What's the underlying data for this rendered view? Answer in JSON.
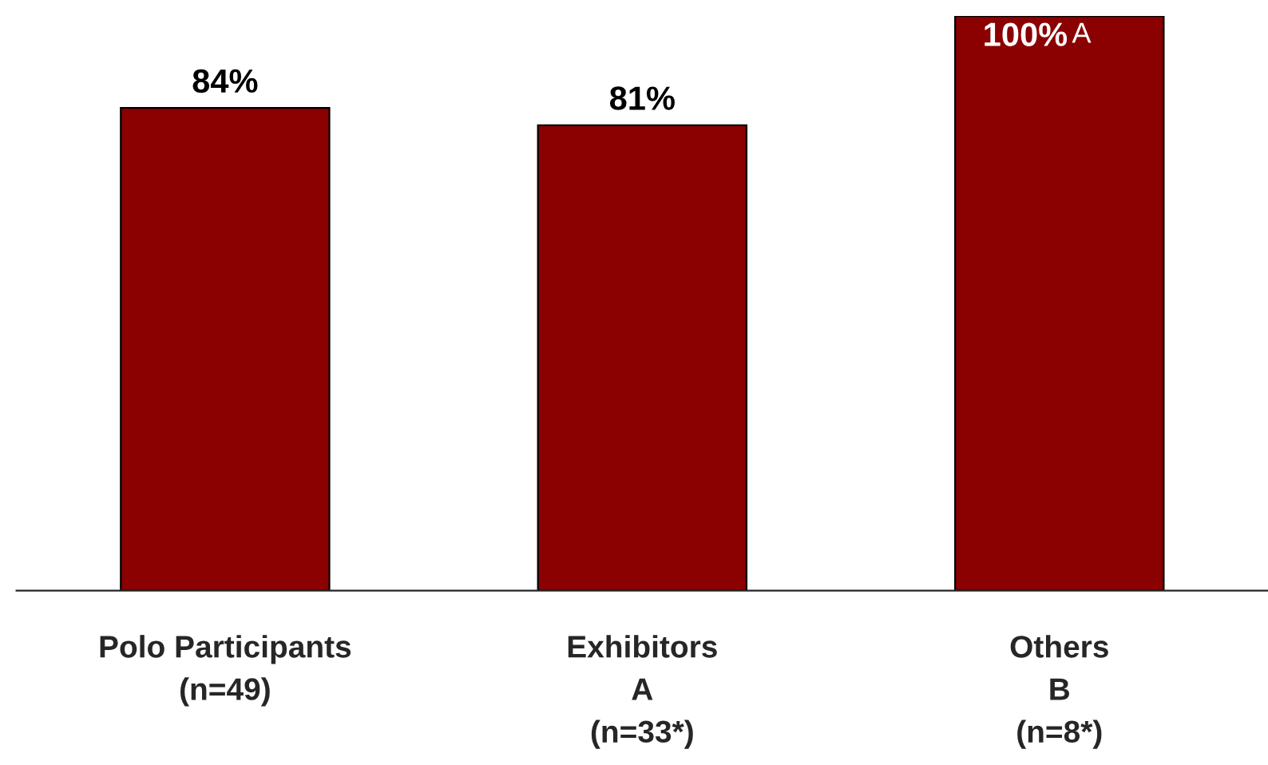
{
  "chart_data": {
    "type": "bar",
    "categories": [
      "Polo Participants\n(n=49)",
      "Exhibitors\nA\n(n=33*)",
      "Others\nB\n(n=8*)"
    ],
    "values": [
      84,
      81,
      100
    ],
    "color": "#8b0000",
    "ylim": [
      0,
      100
    ],
    "value_labels": [
      "84%",
      "81%",
      "100%"
    ],
    "annotations": [
      {
        "text": "A",
        "x": "Others\nB\n(n=8*)",
        "y": 100
      }
    ],
    "grid": false
  }
}
